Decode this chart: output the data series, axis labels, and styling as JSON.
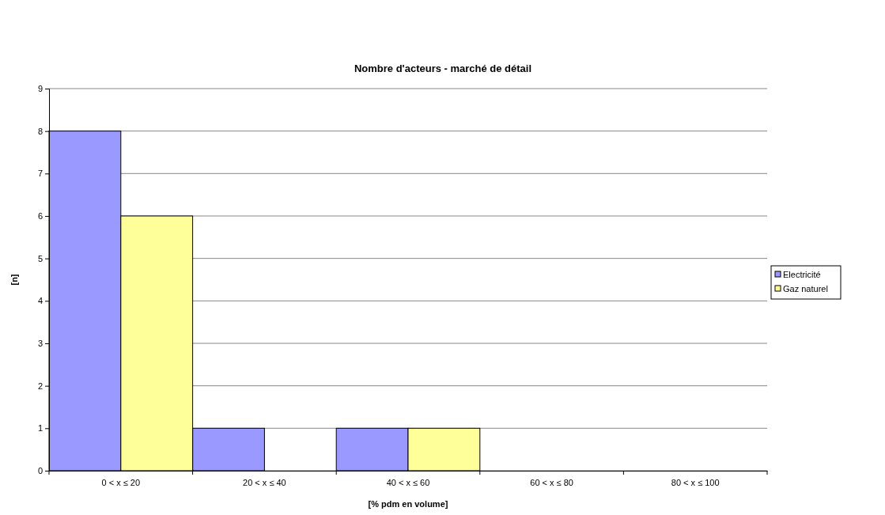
{
  "chart_data": {
    "type": "bar",
    "title": "Nombre d'acteurs - marché de détail",
    "xlabel": "[% pdm en volume]",
    "ylabel": "[n]",
    "categories": [
      "0 < x ≤ 20",
      "20 < x ≤ 40",
      "40 < x ≤ 60",
      "60 < x ≤ 80",
      "80 < x ≤ 100"
    ],
    "series": [
      {
        "name": "Electricité",
        "color": "#9999ff",
        "values": [
          8,
          1,
          1,
          0,
          0
        ]
      },
      {
        "name": "Gaz naturel",
        "color": "#ffff99",
        "values": [
          6,
          0,
          1,
          0,
          0
        ]
      }
    ],
    "ylim": [
      0,
      9
    ],
    "yticks": [
      0,
      1,
      2,
      3,
      4,
      5,
      6,
      7,
      8,
      9
    ],
    "grid": "y",
    "legend": "right"
  }
}
